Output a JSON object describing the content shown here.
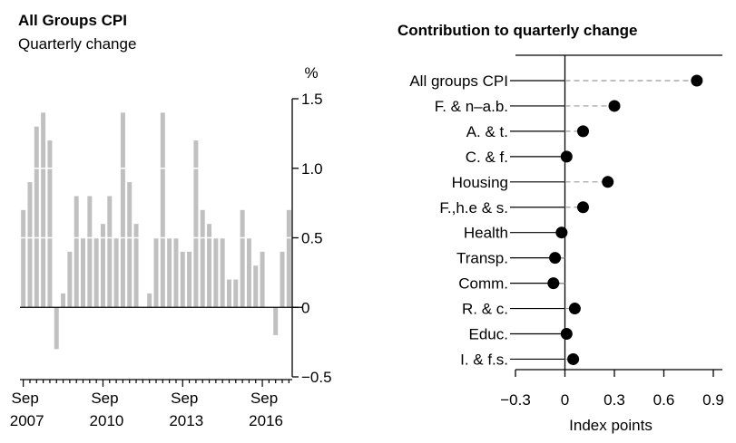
{
  "chart_data": [
    {
      "type": "bar",
      "title": "All Groups CPI",
      "subtitle": "Quarterly change",
      "yunit": "%",
      "ylim": [
        -0.5,
        1.5
      ],
      "yticks": [
        -0.5,
        0,
        0.5,
        1.0,
        1.5
      ],
      "ytick_labels": [
        "−0.5",
        "0",
        "0.5",
        "1.0",
        "1.5"
      ],
      "x_tick_labels": [
        {
          "month": "Sep",
          "year": "2007"
        },
        {
          "month": "Sep",
          "year": "2010"
        },
        {
          "month": "Sep",
          "year": "2013"
        },
        {
          "month": "Sep",
          "year": "2016"
        }
      ],
      "values": [
        0.7,
        0.9,
        1.3,
        1.4,
        1.2,
        -0.3,
        0.1,
        0.4,
        0.8,
        0.5,
        0.8,
        0.5,
        0.6,
        0.8,
        0.5,
        1.4,
        0.9,
        0.6,
        0.0,
        0.1,
        0.5,
        1.4,
        0.5,
        0.5,
        0.4,
        0.4,
        1.2,
        0.7,
        0.6,
        0.5,
        0.5,
        0.2,
        0.2,
        0.7,
        0.5,
        0.3,
        0.4,
        0.0,
        -0.2,
        0.4,
        0.7
      ],
      "bar_color": "#c0c0c0",
      "grid": false
    },
    {
      "type": "scatter",
      "title": "Contribution to quarterly change",
      "xlabel": "Index points",
      "xlim": [
        -0.3,
        0.9
      ],
      "xticks": [
        -0.3,
        0,
        0.3,
        0.6,
        0.9
      ],
      "xtick_labels": [
        "−0.3",
        "0",
        "0.3",
        "0.6",
        "0.9"
      ],
      "categories": [
        "All groups CPI",
        "F. & n–a.b.",
        "A. & t.",
        "C. & f.",
        "Housing",
        "F.,h.e & s.",
        "Health",
        "Transp.",
        "Comm.",
        "R. & c.",
        "Educ.",
        "I. & f.s."
      ],
      "values": [
        0.8,
        0.3,
        0.11,
        0.01,
        0.26,
        0.11,
        -0.02,
        -0.06,
        -0.07,
        0.06,
        0.01,
        0.05
      ],
      "dot_color": "#000000",
      "leader_color": "#9a9a9a",
      "grid": false
    }
  ]
}
